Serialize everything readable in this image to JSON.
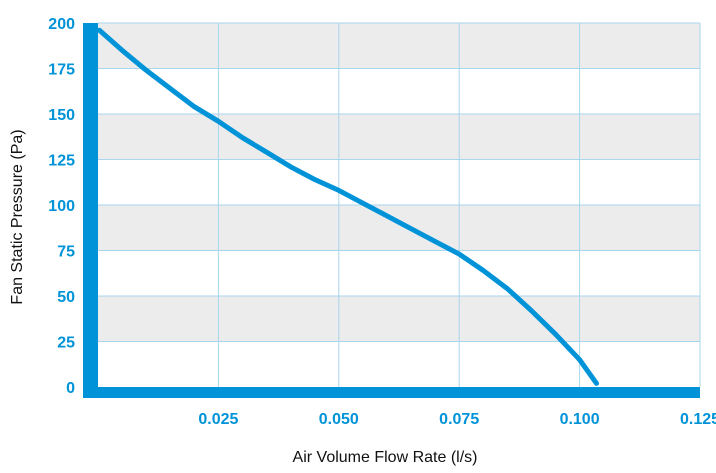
{
  "chart_data": {
    "type": "line",
    "title": "",
    "xlabel": "Air Volume Flow Rate (l/s)",
    "ylabel": "Fan Static Pressure (Pa)",
    "xlim": [
      0,
      0.125
    ],
    "ylim": [
      0,
      200
    ],
    "x_ticks": [
      "0.025",
      "0.050",
      "0.075",
      "0.100",
      "0.125"
    ],
    "y_ticks": [
      "0",
      "25",
      "50",
      "75",
      "100",
      "125",
      "150",
      "175",
      "200"
    ],
    "grid": true,
    "legend": "none",
    "series": [
      {
        "x": [
          0.0003,
          0.005,
          0.01,
          0.015,
          0.02,
          0.025,
          0.03,
          0.035,
          0.04,
          0.045,
          0.05,
          0.055,
          0.06,
          0.065,
          0.07,
          0.075,
          0.08,
          0.085,
          0.09,
          0.095,
          0.1,
          0.1035
        ],
        "y": [
          196,
          185,
          174,
          164,
          154,
          146,
          137,
          129,
          121,
          114,
          108,
          101,
          94,
          87,
          80,
          73,
          64,
          54,
          42,
          29,
          15,
          2
        ]
      }
    ]
  },
  "colors": {
    "accent": "#0093d8",
    "band": "#ececec",
    "grid": "#a8d6ee"
  }
}
